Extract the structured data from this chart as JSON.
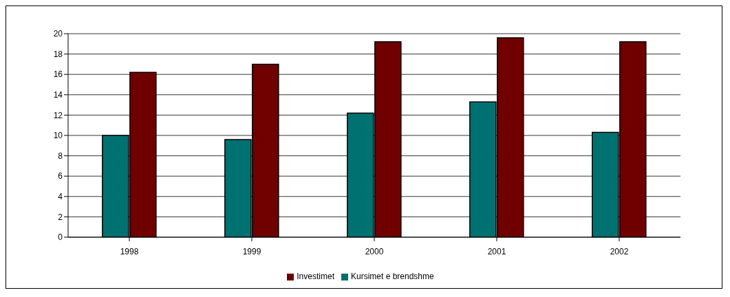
{
  "chart_data": {
    "type": "bar",
    "categories": [
      "1998",
      "1999",
      "2000",
      "2001",
      "2002"
    ],
    "series": [
      {
        "name": "Kursimet e brendshme",
        "color": "#007171",
        "values": [
          10.0,
          9.6,
          12.2,
          13.3,
          10.3
        ]
      },
      {
        "name": "Investimet",
        "color": "#700000",
        "values": [
          16.2,
          17.0,
          19.2,
          19.6,
          19.2
        ]
      }
    ],
    "ylim": [
      0,
      20
    ],
    "yticks": [
      0,
      2,
      4,
      6,
      8,
      10,
      12,
      14,
      16,
      18,
      20
    ],
    "grid": "y",
    "legend": "bottom"
  }
}
